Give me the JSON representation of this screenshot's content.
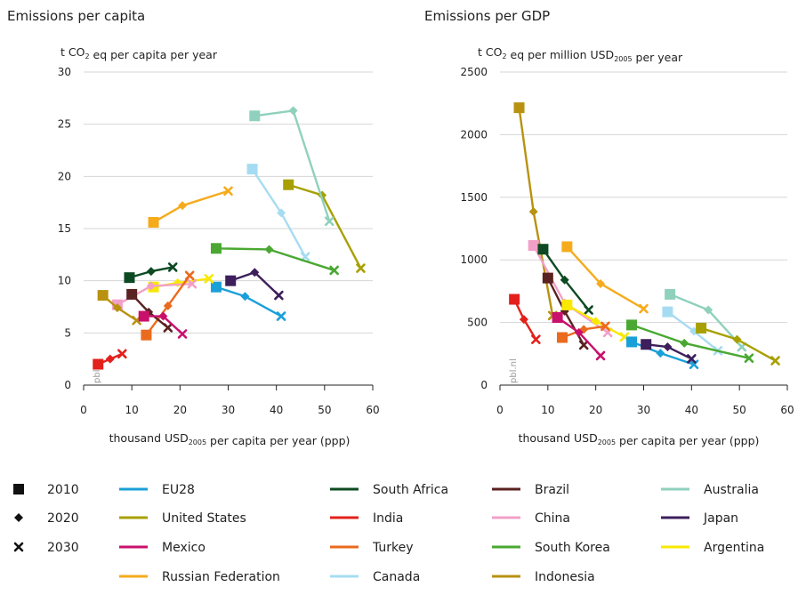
{
  "chart_data": [
    {
      "type": "line",
      "title": "Emissions per capita",
      "ylabel": "t CO₂ eq per capita per year",
      "xlabel": "thousand USD₂₀₀₅ per capita per year (ppp)",
      "xlim": [
        0,
        60
      ],
      "ylim": [
        0,
        30
      ],
      "xticks": [
        0,
        10,
        20,
        30,
        40,
        50,
        60
      ],
      "yticks": [
        0,
        5,
        10,
        15,
        20,
        25,
        30
      ],
      "grid": true,
      "watermark": "pbl.nl",
      "series": [
        {
          "name": "India",
          "color": "#e3201b",
          "points": [
            [
              3,
              2.0
            ],
            [
              5.5,
              2.5
            ],
            [
              8,
              3.0
            ]
          ]
        },
        {
          "name": "United States",
          "color": "#a8a000",
          "points": [
            [
              42.5,
              19.2
            ],
            [
              49.5,
              18.2
            ],
            [
              57.5,
              11.2
            ]
          ]
        },
        {
          "name": "Australia",
          "color": "#8fd1bd",
          "points": [
            [
              35.5,
              25.8
            ],
            [
              43.5,
              26.3
            ],
            [
              51.0,
              15.7
            ]
          ]
        },
        {
          "name": "Canada",
          "color": "#a6dcf2",
          "points": [
            [
              35.0,
              20.7
            ],
            [
              41.0,
              16.5
            ],
            [
              46.0,
              12.3
            ]
          ]
        },
        {
          "name": "Russian Federation",
          "color": "#f5ab1c",
          "points": [
            [
              14.5,
              15.6
            ],
            [
              20.5,
              17.2
            ],
            [
              30.0,
              18.6
            ]
          ]
        },
        {
          "name": "South Korea",
          "color": "#4aa832",
          "points": [
            [
              27.5,
              13.1
            ],
            [
              38.5,
              13.0
            ],
            [
              52.0,
              11.0
            ]
          ]
        },
        {
          "name": "South Africa",
          "color": "#0d4a23",
          "points": [
            [
              9.5,
              10.3
            ],
            [
              14.0,
              10.9
            ],
            [
              18.5,
              11.3
            ]
          ]
        },
        {
          "name": "Japan",
          "color": "#3d1f5c",
          "points": [
            [
              30.5,
              10.0
            ],
            [
              35.5,
              10.8
            ],
            [
              40.5,
              8.6
            ]
          ]
        },
        {
          "name": "EU28",
          "color": "#1aa0d8",
          "points": [
            [
              27.5,
              9.4
            ],
            [
              33.5,
              8.5
            ],
            [
              41.0,
              6.6
            ]
          ]
        },
        {
          "name": "Argentina",
          "color": "#f9e900",
          "points": [
            [
              14.5,
              9.4
            ],
            [
              19.5,
              9.8
            ],
            [
              26.0,
              10.2
            ]
          ]
        },
        {
          "name": "China",
          "color": "#f2a0c8",
          "points": [
            [
              7.0,
              7.7
            ],
            [
              14.0,
              9.5
            ],
            [
              22.5,
              9.7
            ]
          ]
        },
        {
          "name": "Turkey",
          "color": "#ea6a1e",
          "points": [
            [
              13.0,
              4.8
            ],
            [
              17.5,
              7.6
            ],
            [
              22.0,
              10.5
            ]
          ]
        },
        {
          "name": "Brazil",
          "color": "#5a2220",
          "points": [
            [
              10.0,
              8.7
            ],
            [
              13.5,
              7.0
            ],
            [
              17.5,
              5.5
            ]
          ]
        },
        {
          "name": "Indonesia",
          "color": "#b89210",
          "points": [
            [
              4.0,
              8.6
            ],
            [
              7.0,
              7.4
            ],
            [
              11.0,
              6.2
            ]
          ]
        },
        {
          "name": "Mexico",
          "color": "#c8106c",
          "points": [
            [
              12.5,
              6.6
            ],
            [
              16.5,
              6.6
            ],
            [
              20.5,
              4.9
            ]
          ]
        }
      ]
    },
    {
      "type": "line",
      "title": "Emissions per GDP",
      "ylabel": "t CO₂ eq per million USD₂₀₀₅ per year",
      "xlabel": "thousand USD₂₀₀₅ per capita per year (ppp)",
      "xlim": [
        0,
        60
      ],
      "ylim": [
        0,
        2500
      ],
      "xticks": [
        0,
        10,
        20,
        30,
        40,
        50,
        60
      ],
      "yticks": [
        0,
        500,
        1000,
        1500,
        2000,
        2500
      ],
      "grid": true,
      "watermark": "pbl.nl",
      "series": [
        {
          "name": "Indonesia",
          "color": "#b89210",
          "points": [
            [
              4.0,
              2215
            ],
            [
              7.0,
              1385
            ],
            [
              11.0,
              555
            ]
          ]
        },
        {
          "name": "China",
          "color": "#f2a0c8",
          "points": [
            [
              7.0,
              1115
            ],
            [
              13.5,
              655
            ],
            [
              22.5,
              420
            ]
          ]
        },
        {
          "name": "South Africa",
          "color": "#0d4a23",
          "points": [
            [
              9.0,
              1085
            ],
            [
              13.5,
              840
            ],
            [
              18.5,
              600
            ]
          ]
        },
        {
          "name": "Russian Federation",
          "color": "#f5ab1c",
          "points": [
            [
              14.0,
              1105
            ],
            [
              21.0,
              810
            ],
            [
              30.0,
              610
            ]
          ]
        },
        {
          "name": "Brazil",
          "color": "#5a2220",
          "points": [
            [
              10.0,
              855
            ],
            [
              13.5,
              590
            ],
            [
              17.5,
              320
            ]
          ]
        },
        {
          "name": "Argentina",
          "color": "#f9e900",
          "points": [
            [
              14.0,
              640
            ],
            [
              20.0,
              510
            ],
            [
              26.0,
              385
            ]
          ]
        },
        {
          "name": "India",
          "color": "#e3201b",
          "points": [
            [
              3.0,
              685
            ],
            [
              5.0,
              525
            ],
            [
              7.5,
              365
            ]
          ]
        },
        {
          "name": "Turkey",
          "color": "#ea6a1e",
          "points": [
            [
              13.0,
              380
            ],
            [
              17.5,
              445
            ],
            [
              22.0,
              470
            ]
          ]
        },
        {
          "name": "Mexico",
          "color": "#c8106c",
          "points": [
            [
              12.0,
              540
            ],
            [
              16.5,
              420
            ],
            [
              21.0,
              235
            ]
          ]
        },
        {
          "name": "Australia",
          "color": "#8fd1bd",
          "points": [
            [
              35.5,
              725
            ],
            [
              43.5,
              600
            ],
            [
              50.5,
              305
            ]
          ]
        },
        {
          "name": "Canada",
          "color": "#a6dcf2",
          "points": [
            [
              35.0,
              585
            ],
            [
              40.5,
              430
            ],
            [
              45.5,
              275
            ]
          ]
        },
        {
          "name": "South Korea",
          "color": "#4aa832",
          "points": [
            [
              27.5,
              480
            ],
            [
              38.5,
              335
            ],
            [
              52.0,
              215
            ]
          ]
        },
        {
          "name": "United States",
          "color": "#a8a000",
          "points": [
            [
              42.0,
              455
            ],
            [
              49.5,
              365
            ],
            [
              57.5,
              195
            ]
          ]
        },
        {
          "name": "EU28",
          "color": "#1aa0d8",
          "points": [
            [
              27.5,
              345
            ],
            [
              33.5,
              255
            ],
            [
              40.5,
              165
            ]
          ]
        },
        {
          "name": "Japan",
          "color": "#3d1f5c",
          "points": [
            [
              30.5,
              325
            ],
            [
              35.0,
              305
            ],
            [
              40.0,
              210
            ]
          ]
        }
      ]
    }
  ],
  "legend": {
    "markers": [
      {
        "label": "2010",
        "shape": "square"
      },
      {
        "label": "2020",
        "shape": "diamond"
      },
      {
        "label": "2030",
        "shape": "cross"
      }
    ],
    "columns": [
      [
        {
          "name": "EU28",
          "color": "#1aa0d8"
        },
        {
          "name": "United States",
          "color": "#a8a000"
        },
        {
          "name": "Mexico",
          "color": "#c8106c"
        },
        {
          "name": "Russian Federation",
          "color": "#f5ab1c"
        }
      ],
      [
        {
          "name": "South Africa",
          "color": "#0d4a23"
        },
        {
          "name": "India",
          "color": "#e3201b"
        },
        {
          "name": "Turkey",
          "color": "#ea6a1e"
        },
        {
          "name": "Canada",
          "color": "#a6dcf2"
        }
      ],
      [
        {
          "name": "Brazil",
          "color": "#5a2220"
        },
        {
          "name": "China",
          "color": "#f2a0c8"
        },
        {
          "name": "South Korea",
          "color": "#4aa832"
        },
        {
          "name": "Indonesia",
          "color": "#b89210"
        }
      ],
      [
        {
          "name": "Australia",
          "color": "#8fd1bd"
        },
        {
          "name": "Japan",
          "color": "#3d1f5c"
        },
        {
          "name": "Argentina",
          "color": "#f9e900"
        }
      ]
    ]
  }
}
